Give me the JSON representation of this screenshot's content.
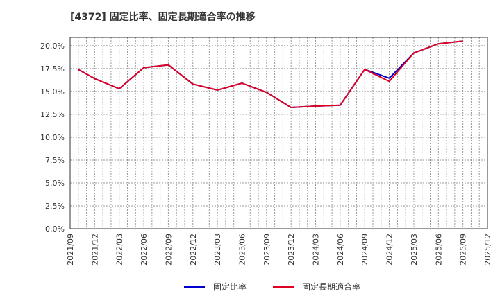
{
  "title": "[4372]  固定比率、固定長期適合率の推移",
  "chart_data": {
    "type": "line",
    "title": "[4372]  固定比率、固定長期適合率の推移",
    "xlabel": "",
    "ylabel": "",
    "x_tick_labels": [
      "2021/09",
      "2021/12",
      "2022/03",
      "2022/06",
      "2022/09",
      "2022/12",
      "2023/03",
      "2023/06",
      "2023/09",
      "2023/12",
      "2024/03",
      "2024/06",
      "2024/09",
      "2024/12",
      "2025/03",
      "2025/06",
      "2025/09",
      "2025/12"
    ],
    "y_tick_labels": [
      "0.0%",
      "2.5%",
      "5.0%",
      "7.5%",
      "10.0%",
      "12.5%",
      "15.0%",
      "17.5%",
      "20.0%"
    ],
    "ylim": [
      0,
      20.9
    ],
    "grid": true,
    "legend_position": "bottom",
    "x": [
      "2021/10",
      "2021/12",
      "2022/03",
      "2022/06",
      "2022/09",
      "2022/12",
      "2023/03",
      "2023/06",
      "2023/09",
      "2023/12",
      "2024/03",
      "2024/06",
      "2024/09",
      "2024/12",
      "2025/03",
      "2025/06",
      "2025/09"
    ],
    "x_month_index": [
      1,
      3,
      6,
      9,
      12,
      15,
      18,
      21,
      24,
      27,
      30,
      33,
      36,
      39,
      42,
      45,
      48
    ],
    "series": [
      {
        "name": "固定比率",
        "color": "#0000ff",
        "values": [
          17.4,
          16.4,
          15.3,
          17.6,
          17.9,
          15.8,
          15.15,
          15.9,
          14.9,
          13.25,
          13.4,
          13.5,
          17.4,
          16.45,
          19.2,
          20.2,
          20.5
        ]
      },
      {
        "name": "固定長期適合率",
        "color": "#ff0000",
        "values": [
          17.4,
          16.4,
          15.3,
          17.6,
          17.9,
          15.8,
          15.15,
          15.9,
          14.9,
          13.25,
          13.4,
          13.5,
          17.4,
          16.1,
          19.2,
          20.2,
          20.5
        ]
      }
    ]
  },
  "legend": {
    "items": [
      {
        "label": "固定比率",
        "color": "#0000cc"
      },
      {
        "label": "固定長期適合率",
        "color": "#dd0022"
      }
    ]
  }
}
